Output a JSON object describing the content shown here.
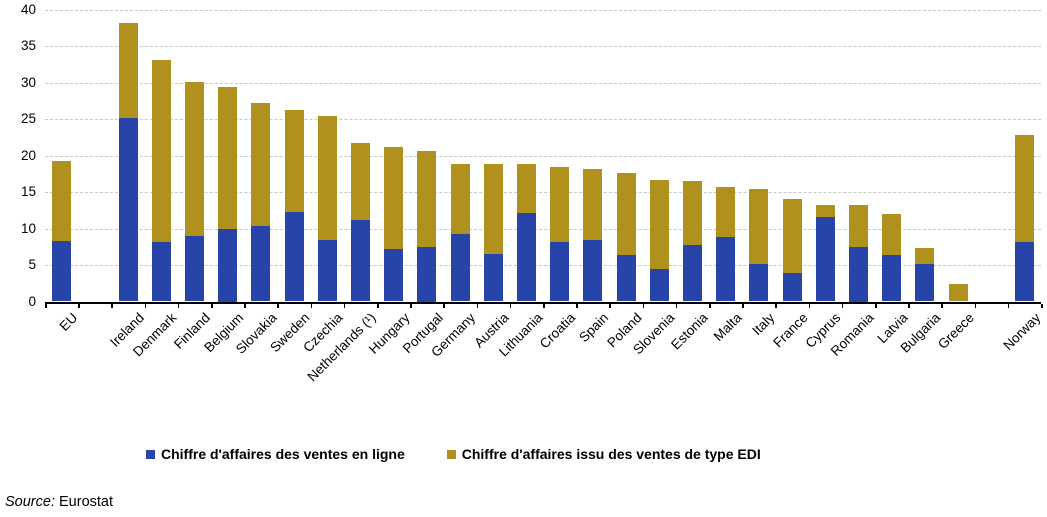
{
  "chart_data": {
    "type": "bar",
    "stacked": true,
    "title": "",
    "xlabel": "",
    "ylabel": "",
    "ylim": [
      0,
      40
    ],
    "yticks": [
      0,
      5,
      10,
      15,
      20,
      25,
      30,
      35,
      40
    ],
    "grid": "horizontal-dashed",
    "legend_position": "bottom-center",
    "gap_after_indices": [
      0,
      26
    ],
    "categories": [
      "EU",
      "Ireland",
      "Denmark",
      "Finland",
      "Belgium",
      "Slovakia",
      "Sweden",
      "Czechia",
      "Netherlands (¹)",
      "Hungary",
      "Portugal",
      "Germany",
      "Austria",
      "Lithuania",
      "Croatia",
      "Spain",
      "Poland",
      "Slovenia",
      "Estonia",
      "Malta",
      "Italy",
      "France",
      "Cyprus",
      "Romania",
      "Latvia",
      "Bulgaria",
      "Greece",
      "Norway"
    ],
    "series": [
      {
        "name": "Chiffre d'affaires des ventes en ligne",
        "color": "#2744A8",
        "values": [
          8.3,
          25.2,
          8.1,
          9.0,
          10.0,
          10.3,
          12.3,
          8.5,
          11.2,
          7.2,
          7.5,
          9.3,
          6.5,
          12.2,
          8.1,
          8.4,
          6.4,
          4.4,
          7.7,
          8.8,
          5.2,
          3.9,
          11.6,
          7.5,
          6.4,
          5.1,
          0.0,
          8.2
        ]
      },
      {
        "name": "Chiffre d'affaires issu des ventes de type EDI",
        "color": "#B1911E",
        "values": [
          11.0,
          13.0,
          25.1,
          21.1,
          19.5,
          17.0,
          14.0,
          17.0,
          10.5,
          14.0,
          13.1,
          9.6,
          12.4,
          6.6,
          10.3,
          9.8,
          11.2,
          12.3,
          8.9,
          6.9,
          10.3,
          10.2,
          1.6,
          5.7,
          5.6,
          2.3,
          2.4,
          14.6
        ]
      }
    ]
  },
  "legend": {
    "online_label": "Chiffre d'affaires des ventes en ligne",
    "edi_label": "Chiffre d'affaires issu des ventes de type EDI"
  },
  "source": {
    "prefix": "Source:",
    "text": " Eurostat"
  },
  "colors": {
    "online": "#2744A8",
    "edi": "#B1911E",
    "gridline": "#c8c8c8",
    "axis": "#000000"
  }
}
